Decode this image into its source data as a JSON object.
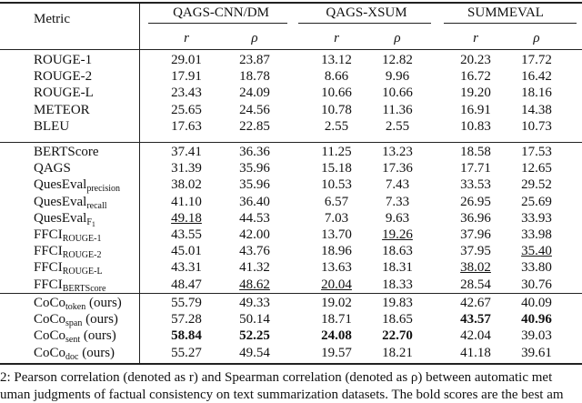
{
  "table": {
    "header": {
      "metric": "Metric",
      "groups": [
        "QAGS-CNN/DM",
        "QAGS-XSUM",
        "SUMMEVAL"
      ],
      "subheaders": [
        "r",
        "ρ",
        "r",
        "ρ",
        "r",
        "ρ"
      ]
    },
    "sections": [
      [
        {
          "metric": {
            "base": "ROUGE-1"
          },
          "values": [
            "29.01",
            "23.87",
            "13.12",
            "12.82",
            "20.23",
            "17.72"
          ]
        },
        {
          "metric": {
            "base": "ROUGE-2"
          },
          "values": [
            "17.91",
            "18.78",
            "8.66",
            "9.96",
            "16.72",
            "16.42"
          ]
        },
        {
          "metric": {
            "base": "ROUGE-L"
          },
          "values": [
            "23.43",
            "24.09",
            "10.66",
            "10.66",
            "19.20",
            "18.16"
          ]
        },
        {
          "metric": {
            "base": "METEOR"
          },
          "values": [
            "25.65",
            "24.56",
            "10.78",
            "11.36",
            "16.91",
            "14.38"
          ]
        },
        {
          "metric": {
            "base": "BLEU"
          },
          "values": [
            "17.63",
            "22.85",
            "2.55",
            "2.55",
            "10.83",
            "10.73"
          ]
        }
      ],
      [
        {
          "metric": {
            "base": "BERTScore"
          },
          "values": [
            "37.41",
            "36.36",
            "11.25",
            "13.23",
            "18.58",
            "17.53"
          ]
        },
        {
          "metric": {
            "base": "QAGS"
          },
          "values": [
            "31.39",
            "35.96",
            "15.18",
            "17.36",
            "17.71",
            "12.65"
          ]
        },
        {
          "metric": {
            "base": "QuesEval",
            "sub": "precision"
          },
          "values": [
            "38.02",
            "35.96",
            "10.53",
            "7.43",
            "33.53",
            "29.52"
          ]
        },
        {
          "metric": {
            "base": "QuesEval",
            "sub": "recall"
          },
          "values": [
            "41.10",
            "36.40",
            "6.57",
            "7.33",
            "26.95",
            "25.69"
          ]
        },
        {
          "metric": {
            "base": "QuesEval",
            "sub": "F",
            "subsub": "1"
          },
          "values": [
            "49.18",
            "44.53",
            "7.03",
            "9.63",
            "36.96",
            "33.93"
          ],
          "underline": [
            0
          ]
        },
        {
          "metric": {
            "base": "FFCI",
            "sub": "ROUGE-1"
          },
          "values": [
            "43.55",
            "42.00",
            "13.70",
            "19.26",
            "37.96",
            "33.98"
          ],
          "underline": [
            3
          ]
        },
        {
          "metric": {
            "base": "FFCI",
            "sub": "ROUGE-2"
          },
          "values": [
            "45.01",
            "43.76",
            "18.96",
            "18.63",
            "37.95",
            "35.40"
          ],
          "underline": [
            5
          ]
        },
        {
          "metric": {
            "base": "FFCI",
            "sub": "ROUGE-L"
          },
          "values": [
            "43.31",
            "41.32",
            "13.63",
            "18.31",
            "38.02",
            "33.80"
          ],
          "underline": [
            4
          ]
        },
        {
          "metric": {
            "base": "FFCI",
            "sub": "BERTScore"
          },
          "values": [
            "48.47",
            "48.62",
            "20.04",
            "18.33",
            "28.54",
            "30.76"
          ],
          "underline": [
            1,
            2
          ]
        }
      ],
      [
        {
          "metric": {
            "base": "CoCo",
            "sub": "token",
            "suffix": " (ours)"
          },
          "values": [
            "55.79",
            "49.33",
            "19.02",
            "19.83",
            "42.67",
            "40.09"
          ]
        },
        {
          "metric": {
            "base": "CoCo",
            "sub": "span",
            "suffix": " (ours)"
          },
          "values": [
            "57.28",
            "50.14",
            "18.71",
            "18.65",
            "43.57",
            "40.96"
          ],
          "bold": [
            4,
            5
          ]
        },
        {
          "metric": {
            "base": "CoCo",
            "sub": "sent",
            "suffix": " (ours)"
          },
          "values": [
            "58.84",
            "52.25",
            "24.08",
            "22.70",
            "42.04",
            "39.03"
          ],
          "bold": [
            0,
            1,
            2,
            3
          ]
        },
        {
          "metric": {
            "base": "CoCo",
            "sub": "doc",
            "suffix": " (ours)"
          },
          "values": [
            "55.27",
            "49.54",
            "19.57",
            "18.21",
            "41.18",
            "39.61"
          ]
        }
      ]
    ],
    "caption": [
      "2: Pearson correlation (denoted as r) and Spearman correlation (denoted as ρ) between automatic met",
      "uman judgments of factual consistency on text summarization datasets. The bold scores are the best am"
    ]
  }
}
